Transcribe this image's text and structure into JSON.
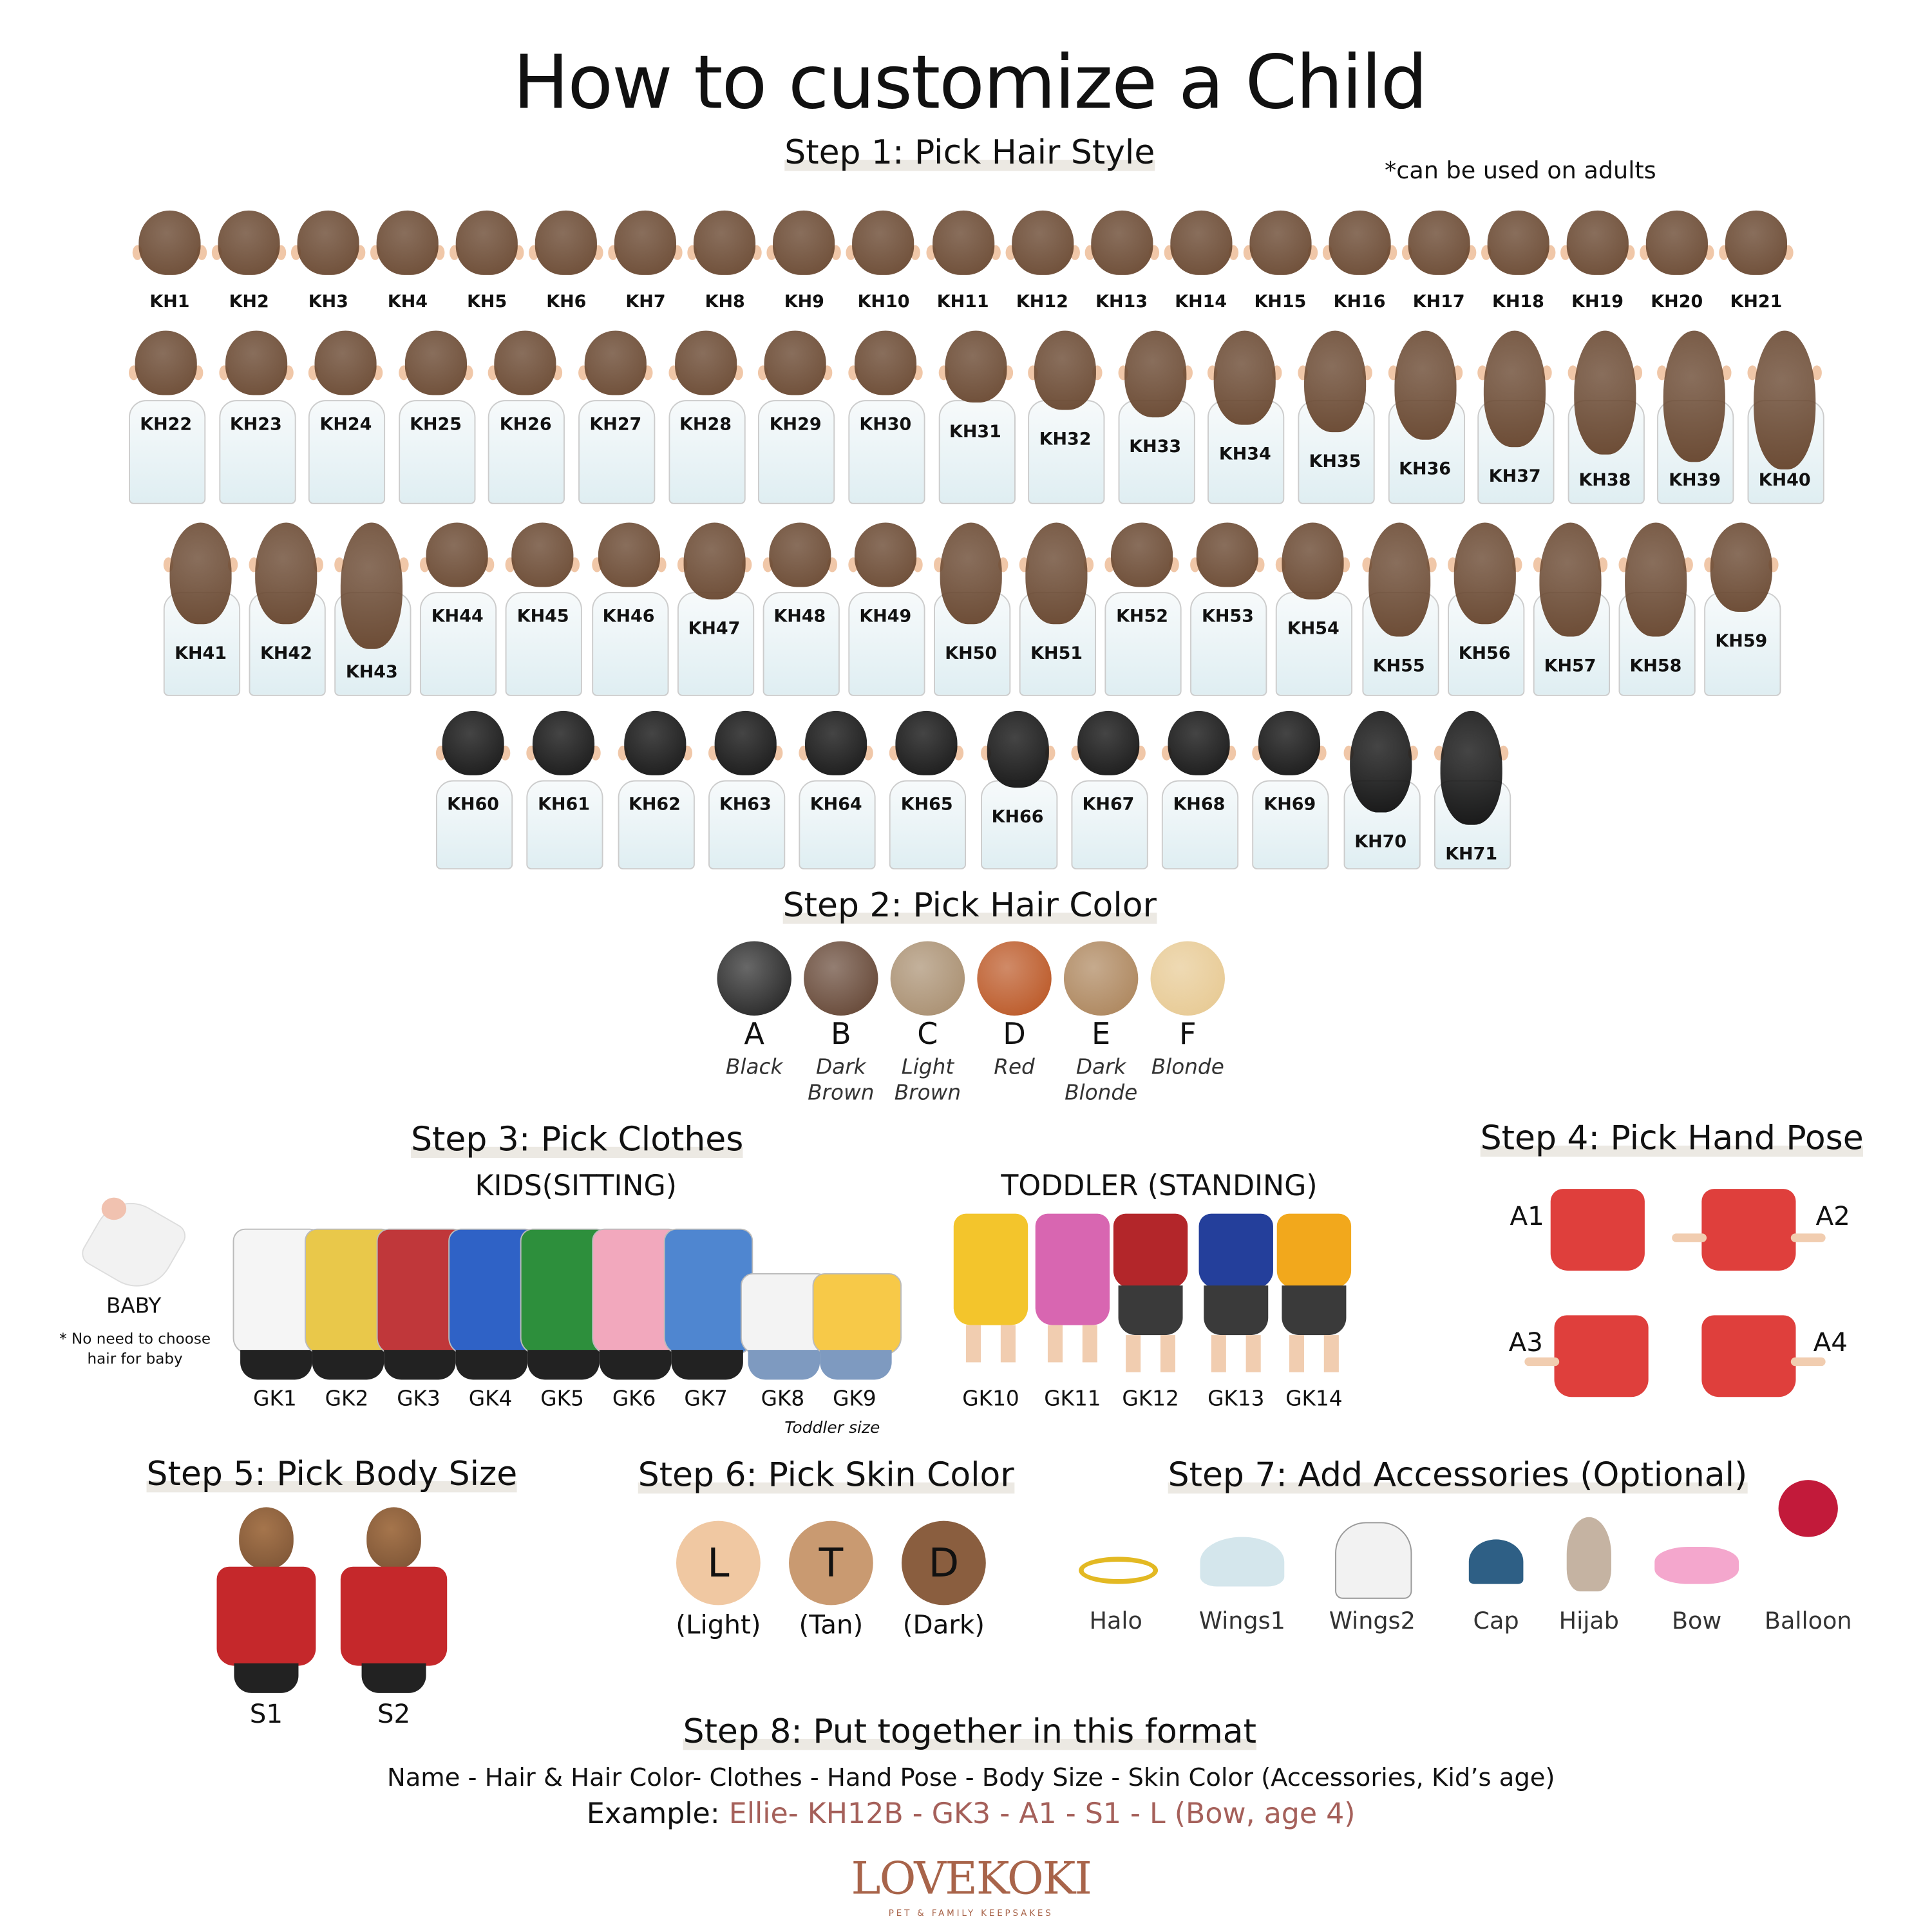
{
  "title": "How to customize a Child",
  "step1": {
    "heading": "Step 1: Pick Hair Style",
    "note": "*can be used on adults"
  },
  "hair": {
    "rows": [
      [
        "KH1",
        "KH2",
        "KH3",
        "KH4",
        "KH5",
        "KH6",
        "KH7",
        "KH8",
        "KH9",
        "KH10",
        "KH11",
        "KH12",
        "KH13",
        "KH14",
        "KH15",
        "KH16",
        "KH17",
        "KH18",
        "KH19",
        "KH20",
        "KH21"
      ],
      [
        "KH22",
        "KH23",
        "KH24",
        "KH25",
        "KH26",
        "KH27",
        "KH28",
        "KH29",
        "KH30",
        "KH31",
        "KH32",
        "KH33",
        "KH34",
        "KH35",
        "KH36",
        "KH37",
        "KH38",
        "KH39",
        "KH40"
      ],
      [
        "KH41",
        "KH42",
        "KH43",
        "KH44",
        "KH45",
        "KH46",
        "KH47",
        "KH48",
        "KH49",
        "KH50",
        "KH51",
        "KH52",
        "KH53",
        "KH54",
        "KH55",
        "KH56",
        "KH57",
        "KH58",
        "KH59"
      ],
      [
        "KH60",
        "KH61",
        "KH62",
        "KH63",
        "KH64",
        "KH65",
        "KH66",
        "KH67",
        "KH68",
        "KH69",
        "KH70",
        "KH71"
      ]
    ],
    "brown": "#6b4a33",
    "black": "#161616"
  },
  "step2": {
    "heading": "Step 2: Pick Hair Color",
    "colors": [
      {
        "letter": "A",
        "name1": "Black",
        "name2": "",
        "color": "#1c1c1c"
      },
      {
        "letter": "B",
        "name1": "Dark",
        "name2": "Brown",
        "color": "#5e3e2c"
      },
      {
        "letter": "C",
        "name1": "Light",
        "name2": "Brown",
        "color": "#a58a6a"
      },
      {
        "letter": "D",
        "name1": "Red",
        "name2": "",
        "color": "#b8501c"
      },
      {
        "letter": "E",
        "name1": "Dark",
        "name2": "Blonde",
        "color": "#a98055"
      },
      {
        "letter": "F",
        "name1": "Blonde",
        "name2": "",
        "color": "#e6c78e"
      }
    ]
  },
  "step3": {
    "heading": "Step 3: Pick Clothes",
    "kids_label": "KIDS(SITTING)",
    "toddler_label": "TODDLER (STANDING)",
    "baby_label": "BABY",
    "baby_note1": "* No need to choose",
    "baby_note2": "hair for baby",
    "toddler_size_note": "Toddler size",
    "kids": [
      {
        "label": "GK1",
        "color": "#f5f5f5"
      },
      {
        "label": "GK2",
        "color": "#e9c84a"
      },
      {
        "label": "GK3",
        "color": "#c0373a"
      },
      {
        "label": "GK4",
        "color": "#2f62c6"
      },
      {
        "label": "GK5",
        "color": "#2d8f3c"
      },
      {
        "label": "GK6",
        "color": "#f2a8bd"
      },
      {
        "label": "GK7",
        "color": "#4f86d0"
      },
      {
        "label": "GK8",
        "color": "#f3f3f3"
      },
      {
        "label": "GK9",
        "color": "#f7c948"
      }
    ],
    "toddlers": [
      {
        "label": "GK10",
        "color": "#f3c52c"
      },
      {
        "label": "GK11",
        "color": "#d866b1"
      },
      {
        "label": "GK12",
        "color": "#b3262a"
      },
      {
        "label": "GK13",
        "color": "#243f9b"
      },
      {
        "label": "GK14",
        "color": "#f2a81c"
      }
    ]
  },
  "step4": {
    "heading": "Step 4: Pick Hand Pose",
    "poses": [
      "A1",
      "A2",
      "A3",
      "A4"
    ],
    "color": "#df3f3c"
  },
  "step5": {
    "heading": "Step 5: Pick Body Size",
    "sizes": [
      "S1",
      "S2"
    ]
  },
  "step6": {
    "heading": "Step 6: Pick Skin Color",
    "skins": [
      {
        "letter": "L",
        "name": "(Light)",
        "color": "#f0c8a2"
      },
      {
        "letter": "T",
        "name": "(Tan)",
        "color": "#c99a71"
      },
      {
        "letter": "D",
        "name": "(Dark)",
        "color": "#8a5e3f"
      }
    ]
  },
  "step7": {
    "heading": "Step 7: Add Accessories (Optional)",
    "items": [
      "Halo",
      "Wings1",
      "Wings2",
      "Cap",
      "Hijab",
      "Bow",
      "Balloon"
    ]
  },
  "step8": {
    "heading": "Step 8: Put together in this format",
    "format": "Name - Hair & Hair Color- Clothes - Hand Pose - Body Size - Skin Color (Accessories, Kid’s age)",
    "example_label": "Example:",
    "example_value": "Ellie-  KH12B - GK3 - A1 - S1 - L (Bow, age 4)",
    "accent": "#a5605a"
  },
  "logo": {
    "name": "LOVEKOKI",
    "tagline": "PET & FAMILY KEEPSAKES",
    "color": "#a8644a"
  }
}
